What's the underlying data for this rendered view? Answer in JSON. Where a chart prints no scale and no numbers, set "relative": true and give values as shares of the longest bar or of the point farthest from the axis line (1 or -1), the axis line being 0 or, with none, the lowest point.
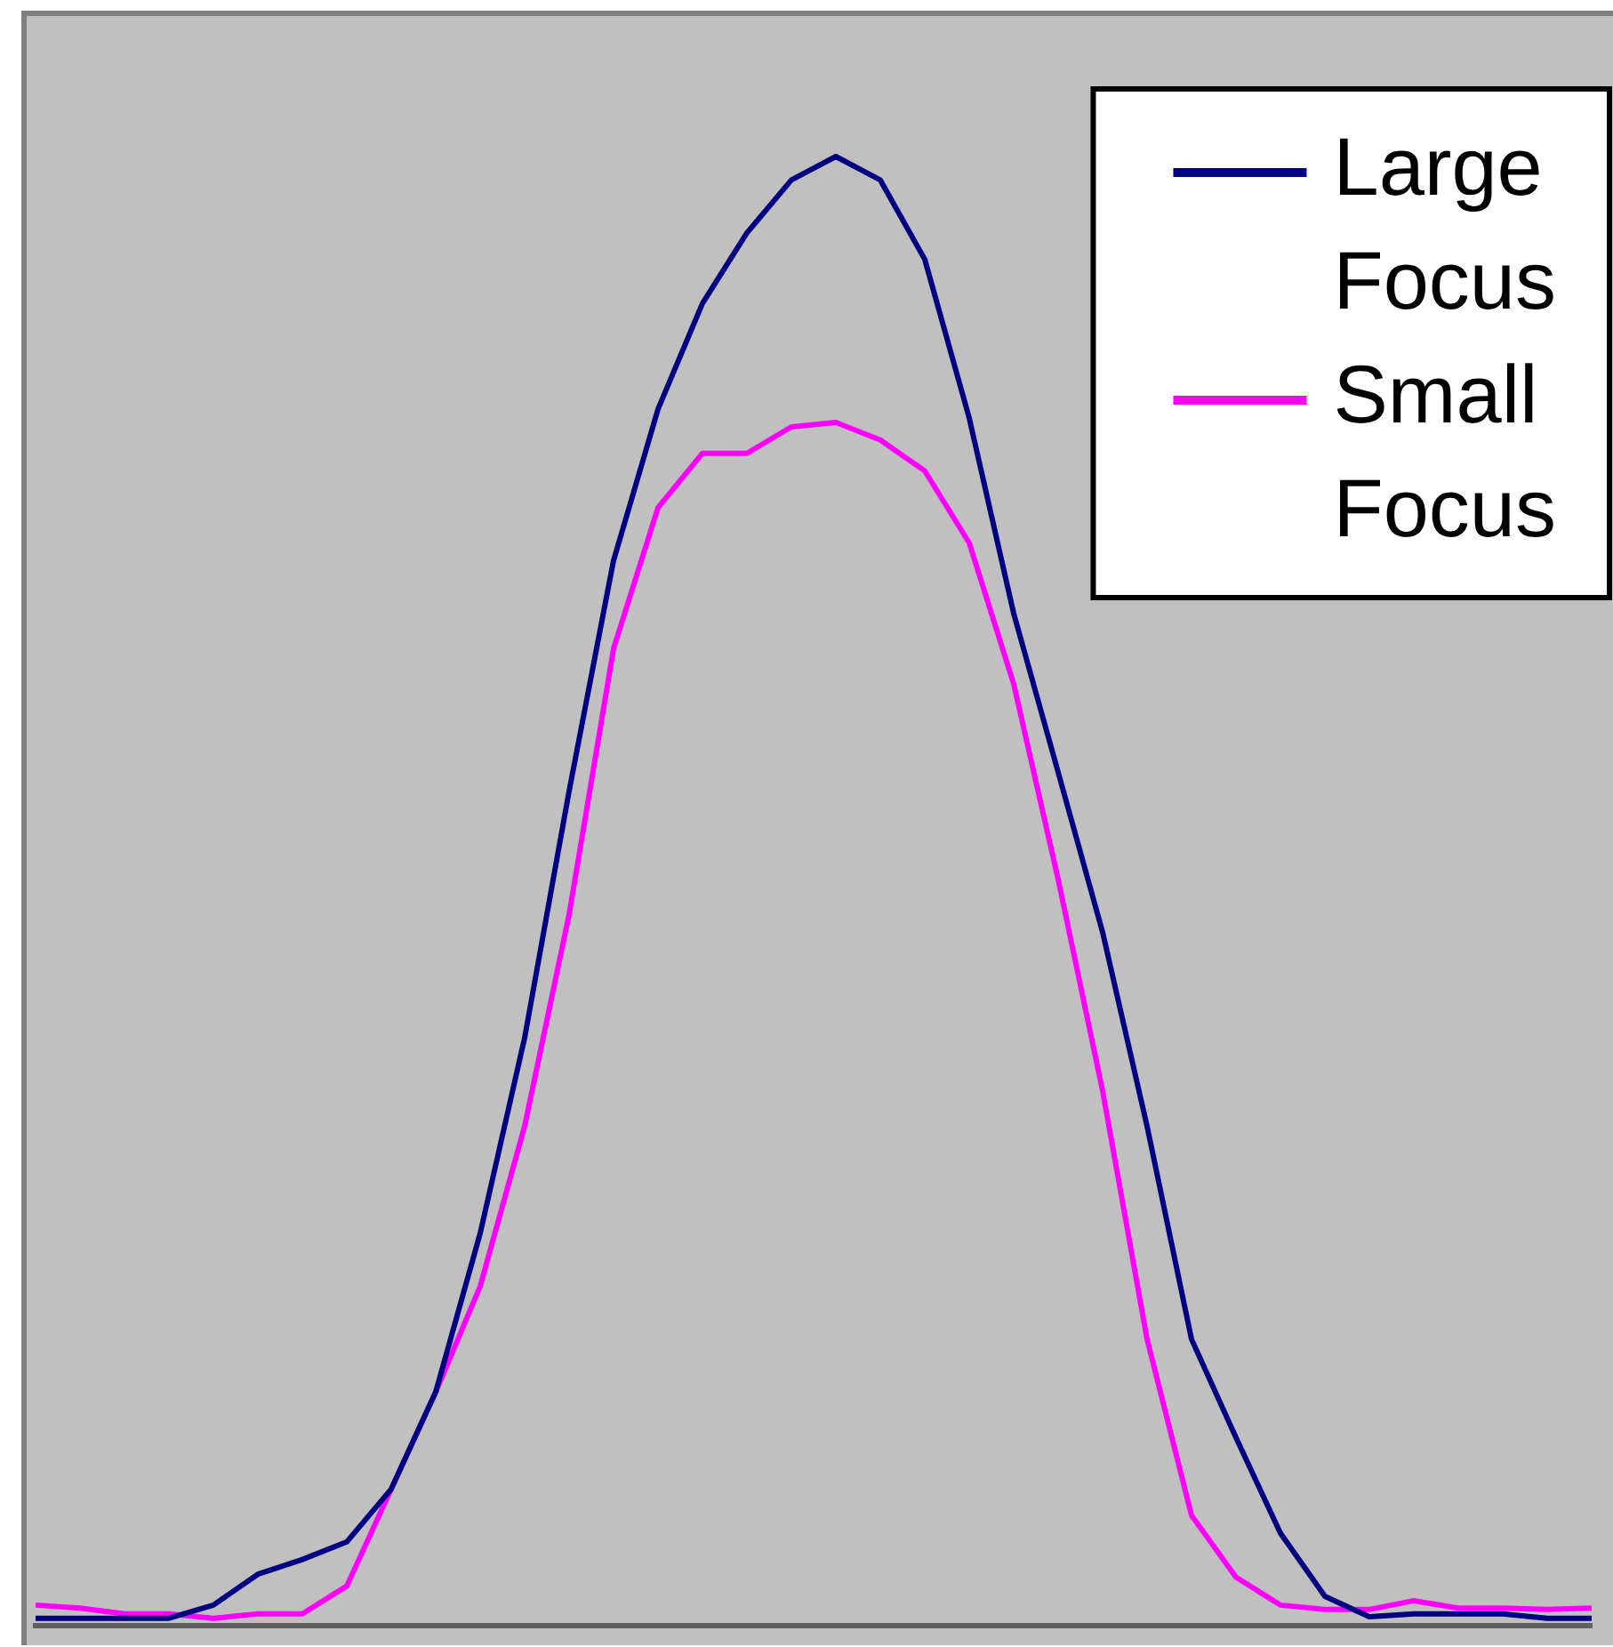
{
  "chart_data": {
    "type": "line",
    "relative": true,
    "legend": "top right",
    "marker": "none",
    "line_style": "solid",
    "categories": [
      null,
      null,
      null,
      null,
      null,
      null,
      null,
      null,
      null,
      null,
      null,
      null,
      null,
      null,
      null,
      null,
      null,
      null,
      null,
      null,
      null,
      null,
      null,
      null,
      null,
      null,
      null,
      null,
      null,
      null,
      null,
      null,
      null,
      null,
      null,
      null
    ],
    "series": [
      {
        "name": "Large Focus",
        "color": "#000080",
        "values": [
          0.005,
          0.005,
          0.005,
          0.005,
          0.014,
          0.035,
          0.045,
          0.057,
          0.093,
          0.159,
          0.267,
          0.4,
          0.568,
          0.725,
          0.828,
          0.9,
          0.948,
          0.984,
          1,
          0.984,
          0.93,
          0.822,
          0.689,
          0.581,
          0.472,
          0.34,
          0.195,
          0.128,
          0.063,
          0.02,
          0.006,
          0.008,
          0.008,
          0.008,
          0.005,
          0.005
        ]
      },
      {
        "name": "Small Focus",
        "color": "#ff00ff",
        "values": [
          0.014,
          0.012,
          0.008,
          0.008,
          0.005,
          0.008,
          0.008,
          0.027,
          0.093,
          0.159,
          0.231,
          0.34,
          0.484,
          0.665,
          0.761,
          0.798,
          0.798,
          0.816,
          0.819,
          0.807,
          0.786,
          0.737,
          0.641,
          0.508,
          0.364,
          0.195,
          0.075,
          0.033,
          0.014,
          0.011,
          0.011,
          0.017,
          0.012,
          0.012,
          0.011,
          0.012
        ]
      }
    ]
  }
}
